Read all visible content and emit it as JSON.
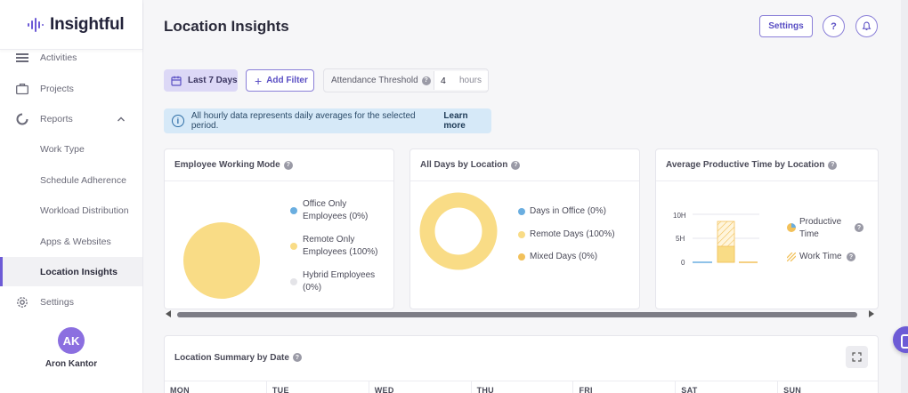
{
  "app": {
    "name": "Insightful"
  },
  "sidebar": {
    "items": [
      {
        "label": "Activities",
        "icon": "list-icon"
      },
      {
        "label": "Projects",
        "icon": "briefcase-icon"
      },
      {
        "label": "Reports",
        "icon": "reports-icon"
      },
      {
        "label": "Work Type"
      },
      {
        "label": "Schedule Adherence"
      },
      {
        "label": "Workload Distribution"
      },
      {
        "label": "Apps & Websites"
      },
      {
        "label": "Location Insights",
        "active": true
      },
      {
        "label": "Settings",
        "icon": "gear-icon"
      }
    ],
    "user": {
      "initials": "AK",
      "name": "Aron Kantor"
    }
  },
  "header": {
    "title": "Location Insights",
    "settings_label": "Settings",
    "help_label": "?"
  },
  "filters": {
    "date_label": "Last 7 Days",
    "add_filter_label": "Add Filter",
    "threshold_label": "Attendance Threshold",
    "threshold_value": "4",
    "threshold_unit": "hours"
  },
  "info": {
    "text": "All hourly data represents daily averages for the selected period.",
    "link": "Learn more"
  },
  "cards": {
    "working_mode": {
      "title": "Employee Working Mode",
      "legend": [
        {
          "line1": "Office Only",
          "line2": "Employees (0%)",
          "color": "#6aaee0",
          "value": 0
        },
        {
          "line1": "Remote Only",
          "line2": "Employees (100%)",
          "color": "#f9dc86",
          "value": 100
        },
        {
          "line1": "Hybrid Employees",
          "line2": "(0%)",
          "color": "#e4e4e8",
          "value": 0
        }
      ]
    },
    "days_by_location": {
      "title": "All Days by Location",
      "legend": [
        {
          "label": "Days in Office (0%)",
          "color": "#6aaee0",
          "value": 0
        },
        {
          "label": "Remote Days (100%)",
          "color": "#f9dc86",
          "value": 100
        },
        {
          "label": "Mixed Days (0%)",
          "color": "#f2c15a",
          "value": 0
        }
      ]
    },
    "productive_time": {
      "title": "Average Productive Time by Location",
      "y_ticks": [
        "10H",
        "5H",
        "0"
      ],
      "legend": [
        {
          "line1": "Productive",
          "line2": "Time"
        },
        {
          "line1": "Work Time",
          "line2": ""
        }
      ],
      "colors": {
        "productive": "#f9dc86",
        "work": "#f2c15a",
        "office": "#6aaee0"
      }
    }
  },
  "summary": {
    "title": "Location Summary by Date",
    "days": [
      "MON",
      "TUE",
      "WED",
      "THU",
      "FRI",
      "SAT",
      "SUN"
    ]
  },
  "colors": {
    "accent": "#6d5bd6",
    "info_bg": "#d6e9f8"
  }
}
